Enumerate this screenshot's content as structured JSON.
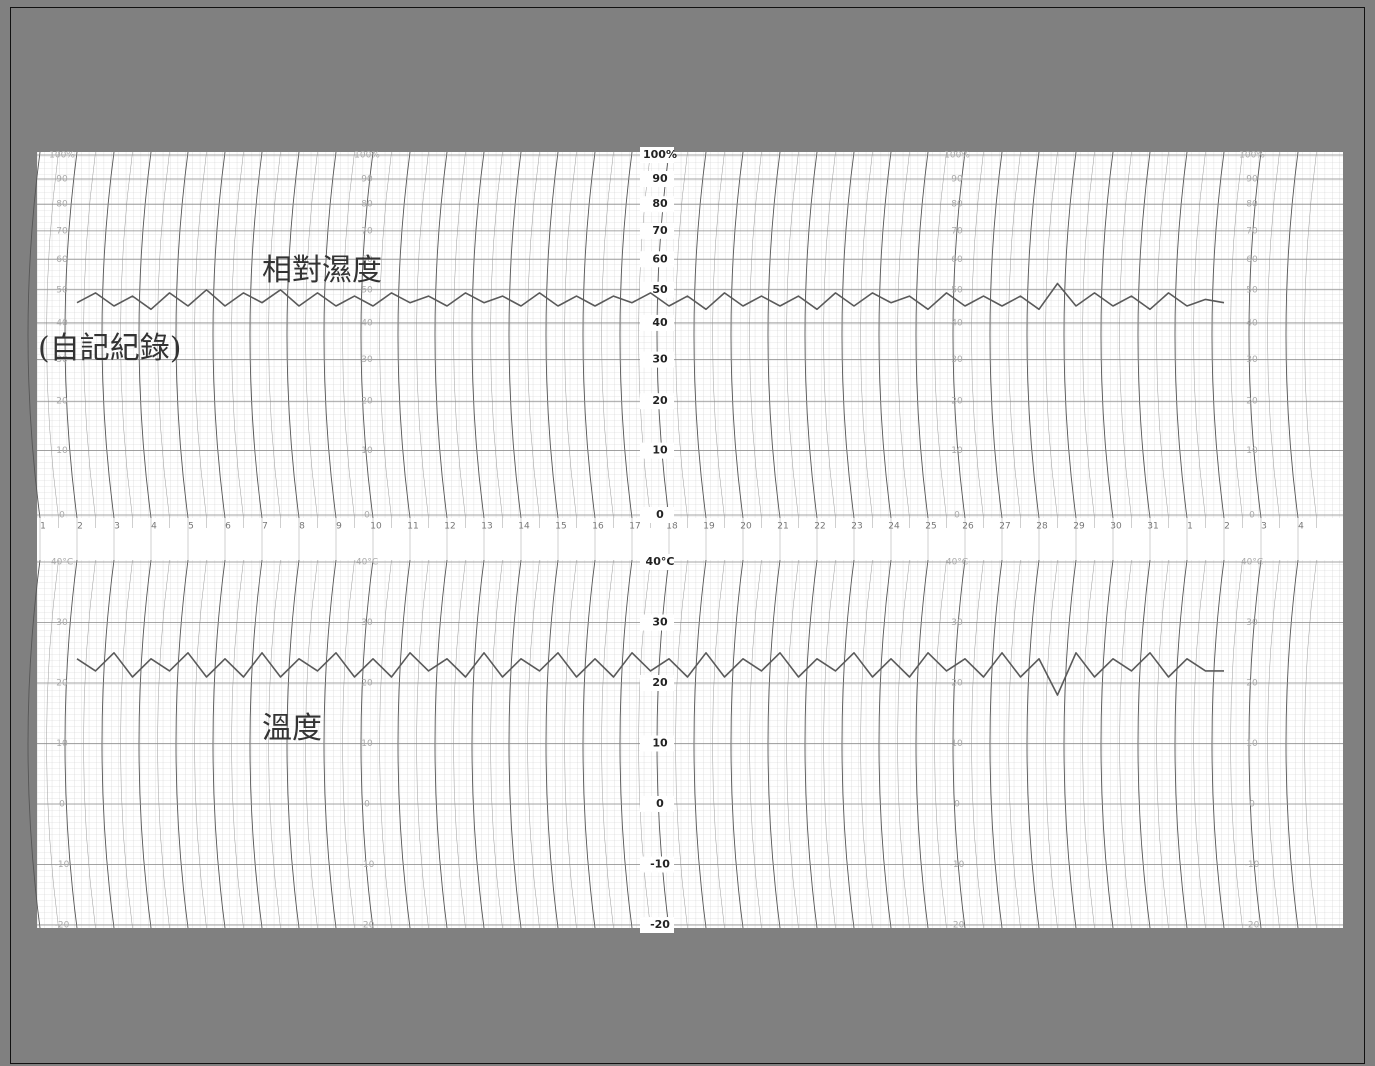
{
  "chart_data": {
    "type": "line",
    "annotation": "(自記紀錄)",
    "categories": [
      "1",
      null,
      "2",
      null,
      "3",
      null,
      "4",
      null,
      "5",
      null,
      "6",
      null,
      "7",
      null,
      "8",
      null,
      "9",
      null,
      "10",
      null,
      "11",
      null,
      "12",
      null,
      "13",
      null,
      "14",
      null,
      "15",
      null,
      "16",
      null,
      "17",
      null,
      "18",
      null,
      "19",
      null,
      "20",
      null,
      "21",
      null,
      "22",
      null,
      "23",
      null,
      "24",
      null,
      "25",
      null,
      "26",
      null,
      "27",
      null,
      "28",
      null,
      "29",
      null,
      "30",
      null,
      "31",
      null,
      "1",
      null,
      "2",
      null,
      "3",
      null,
      "4",
      null
    ],
    "series": [
      {
        "name": "相對濕度",
        "color": "#5a5a5a",
        "axis": "y",
        "values": [
          null,
          null,
          46,
          49,
          45,
          48,
          44,
          49,
          45,
          50,
          45,
          49,
          46,
          50,
          45,
          49,
          45,
          48,
          45,
          49,
          46,
          48,
          45,
          49,
          46,
          48,
          45,
          49,
          45,
          48,
          45,
          48,
          46,
          49,
          45,
          48,
          44,
          49,
          45,
          48,
          45,
          48,
          44,
          49,
          45,
          49,
          46,
          48,
          44,
          49,
          45,
          48,
          45,
          48,
          44,
          52,
          45,
          49,
          45,
          48,
          44,
          49,
          45,
          47,
          46,
          null,
          null,
          null,
          null,
          null
        ]
      },
      {
        "name": "溫度",
        "color": "#5a5a5a",
        "axis": "y2",
        "values": [
          null,
          null,
          24,
          22,
          25,
          21,
          24,
          22,
          25,
          21,
          24,
          21,
          25,
          21,
          24,
          22,
          25,
          21,
          24,
          21,
          25,
          22,
          24,
          21,
          25,
          21,
          24,
          22,
          25,
          21,
          24,
          21,
          25,
          22,
          24,
          21,
          25,
          21,
          24,
          22,
          25,
          21,
          24,
          22,
          25,
          21,
          24,
          21,
          25,
          22,
          24,
          21,
          25,
          21,
          24,
          18,
          25,
          21,
          24,
          22,
          25,
          21,
          24,
          22,
          22,
          null,
          null,
          null,
          null,
          null
        ]
      }
    ],
    "ylim": [
      0,
      100
    ],
    "yticks": [
      0,
      10,
      20,
      30,
      40,
      50,
      60,
      70,
      80,
      90,
      {
        "value": 100,
        "label": "100%"
      }
    ],
    "y2lim": [
      -20,
      40
    ],
    "y2ticks": [
      -20,
      -10,
      0,
      10,
      20,
      30,
      {
        "value": 40,
        "label": "40°C"
      }
    ],
    "grid": true
  }
}
